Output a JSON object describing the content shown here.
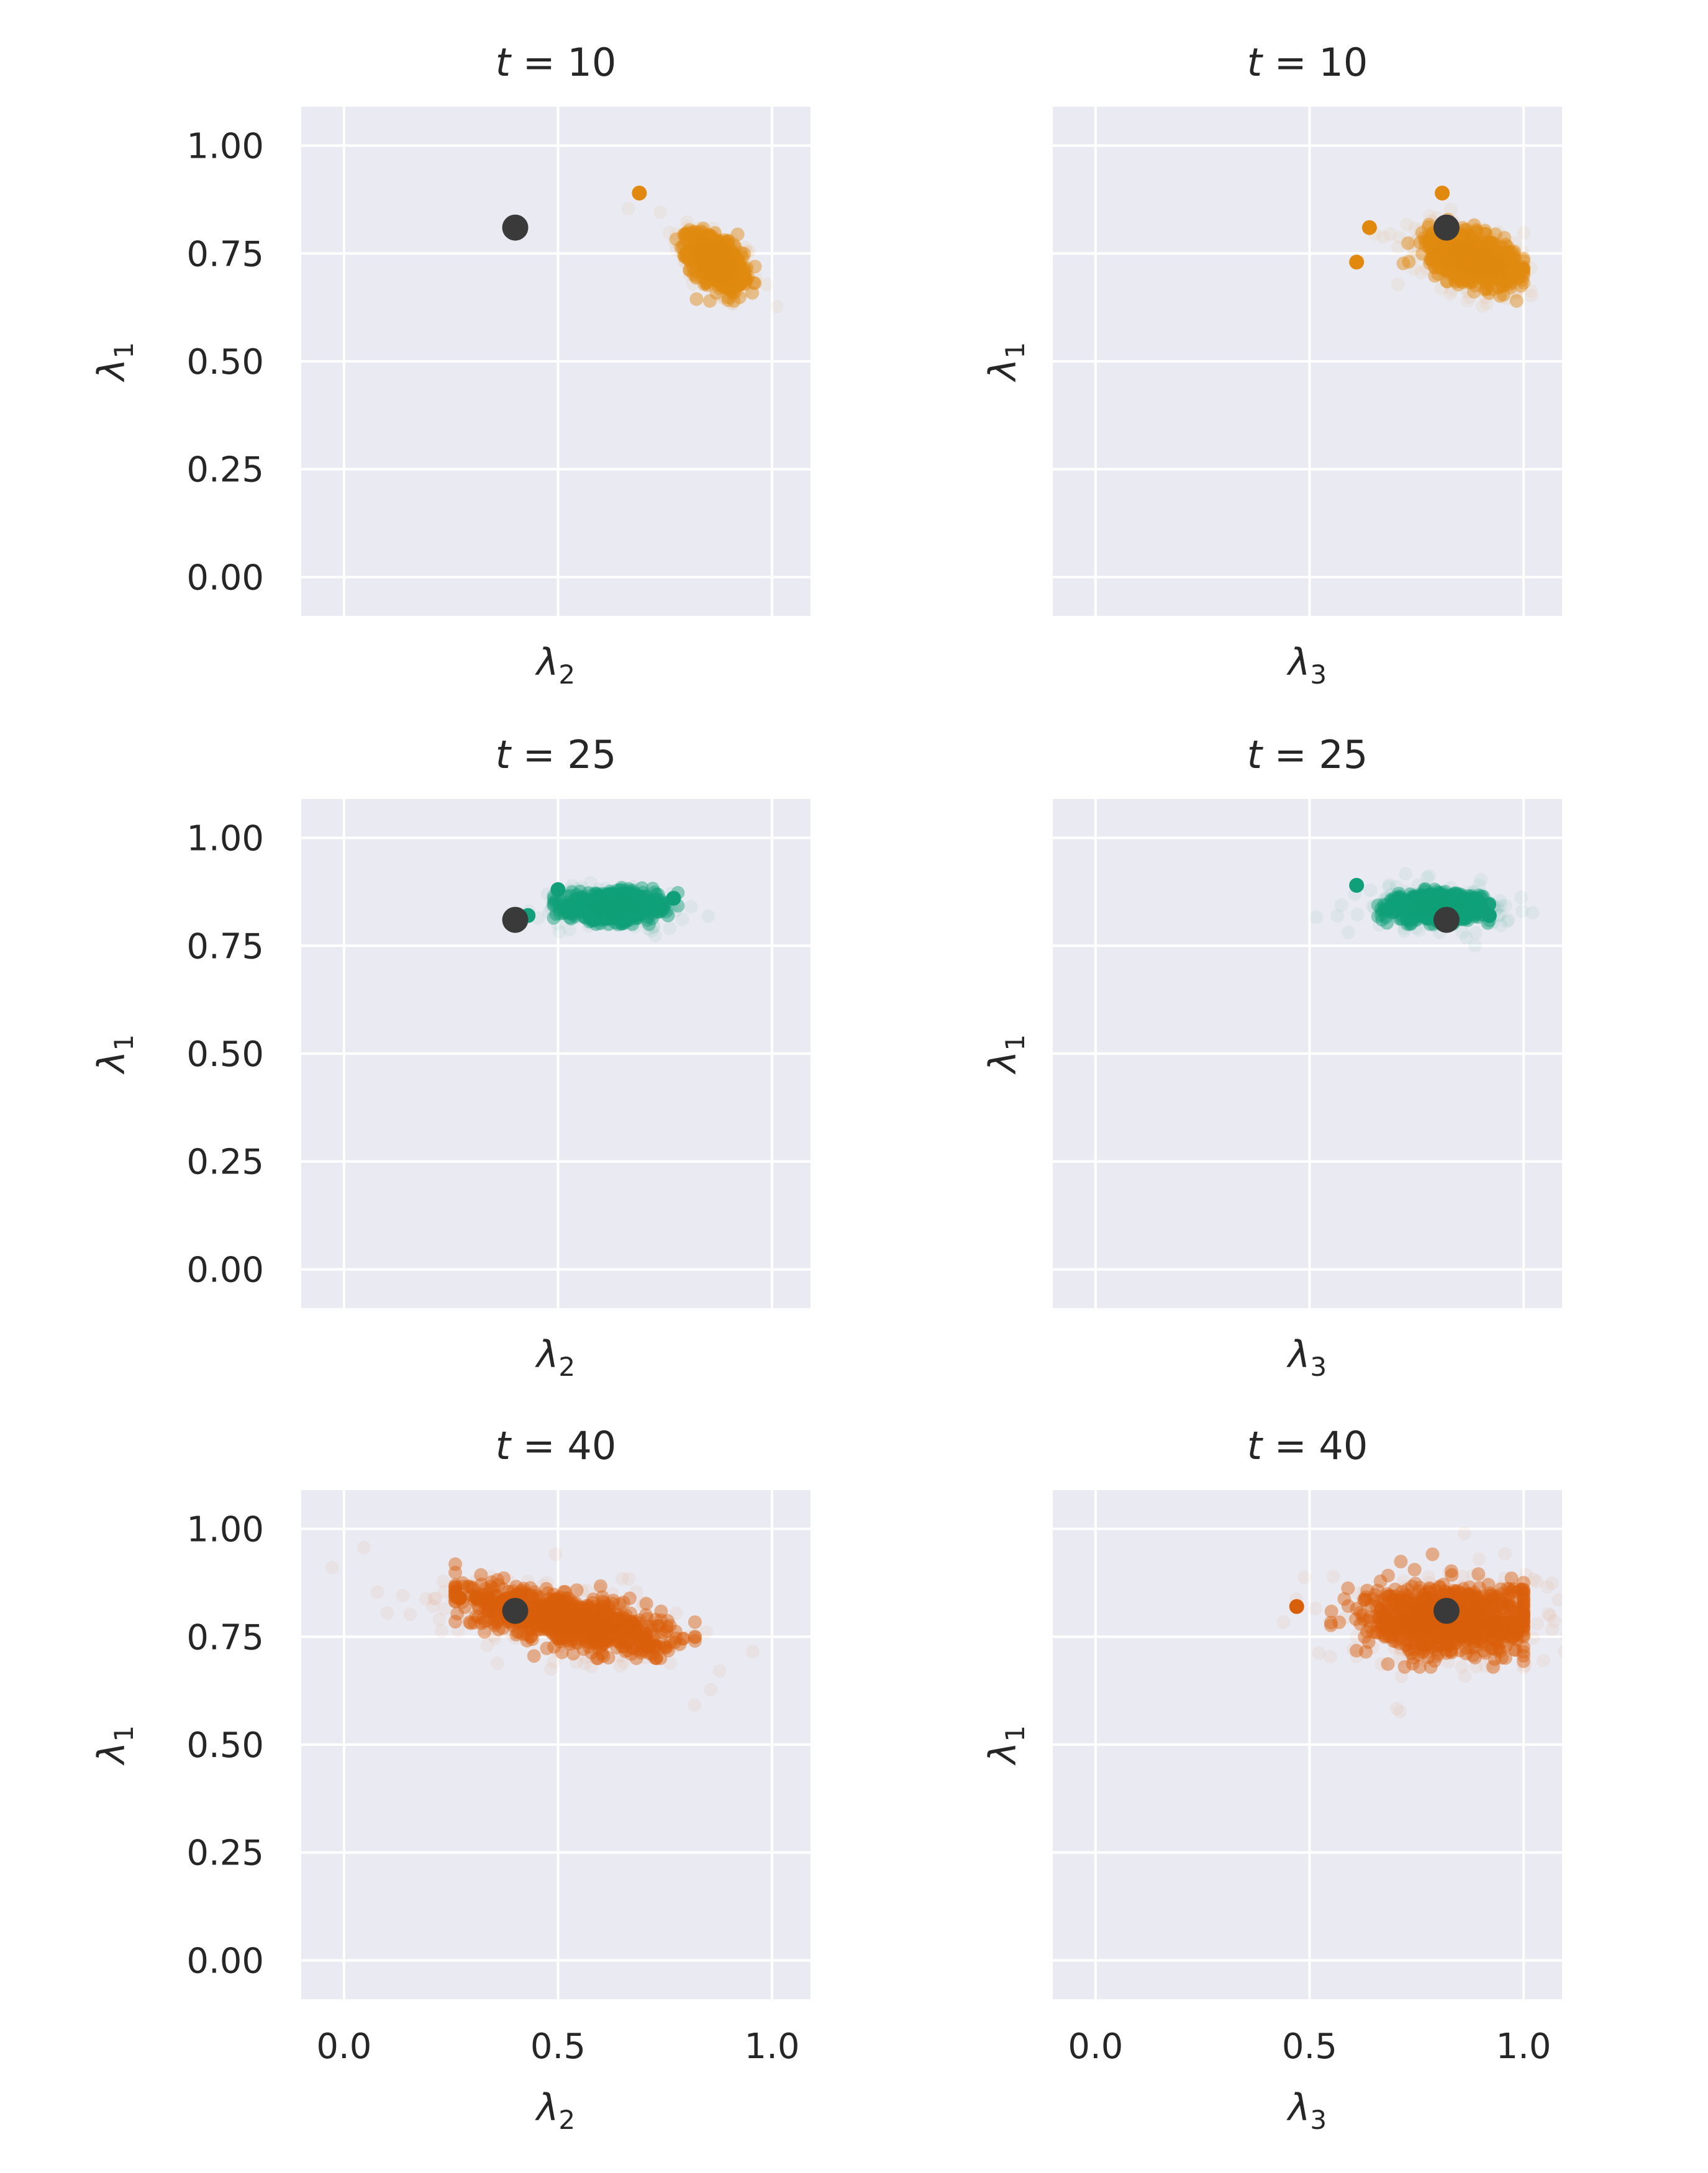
{
  "figure": {
    "colors": {
      "t10": "#e1890f",
      "t25": "#109f78",
      "t40": "#d9600a",
      "truth": "#3a3a3a",
      "panel_bg": "#eaeaf2",
      "grid": "#ffffff"
    }
  },
  "chart_data": [
    {
      "type": "scatter",
      "title": "t = 10",
      "time": "10",
      "xlabel": "λ2",
      "ylabel": "λ1",
      "xlim": [
        -0.1,
        1.09
      ],
      "ylim": [
        -0.09,
        1.09
      ],
      "xticks": [
        "0.0",
        "0.5",
        "1.0"
      ],
      "yticks": [
        "0.00",
        "0.25",
        "0.50",
        "0.75",
        "1.00"
      ],
      "show_xticklabels": false,
      "show_yticklabels": true,
      "color_key": "t10",
      "truth": {
        "x": 0.4,
        "y": 0.81
      },
      "cloud": {
        "cx": 0.87,
        "cy": 0.73,
        "sx": 0.03,
        "sy": 0.03,
        "rho": -0.5,
        "x_range": [
          0.68,
          0.99
        ],
        "y_range": [
          0.64,
          0.89
        ]
      },
      "highlights": [
        {
          "x": 0.69,
          "y": 0.89
        }
      ]
    },
    {
      "type": "scatter",
      "title": "t = 10",
      "time": "10",
      "xlabel": "λ3",
      "ylabel": "λ1",
      "xlim": [
        -0.1,
        1.09
      ],
      "ylim": [
        -0.09,
        1.09
      ],
      "xticks": [
        "0.0",
        "0.5",
        "1.0"
      ],
      "yticks": [
        "0.00",
        "0.25",
        "0.50",
        "0.75",
        "1.00"
      ],
      "show_xticklabels": false,
      "show_yticklabels": false,
      "color_key": "t10",
      "truth": {
        "x": 0.82,
        "y": 0.81
      },
      "cloud": {
        "cx": 0.88,
        "cy": 0.74,
        "sx": 0.05,
        "sy": 0.03,
        "rho": -0.45,
        "x_range": [
          0.6,
          1.0
        ],
        "y_range": [
          0.64,
          0.89
        ]
      },
      "highlights": [
        {
          "x": 0.61,
          "y": 0.73
        },
        {
          "x": 0.64,
          "y": 0.81
        },
        {
          "x": 0.81,
          "y": 0.89
        }
      ]
    },
    {
      "type": "scatter",
      "title": "t = 25",
      "time": "25",
      "xlabel": "λ2",
      "ylabel": "λ1",
      "xlim": [
        -0.1,
        1.09
      ],
      "ylim": [
        -0.09,
        1.09
      ],
      "xticks": [
        "0.0",
        "0.5",
        "1.0"
      ],
      "yticks": [
        "0.00",
        "0.25",
        "0.50",
        "0.75",
        "1.00"
      ],
      "show_xticklabels": false,
      "show_yticklabels": true,
      "color_key": "t25",
      "truth": {
        "x": 0.4,
        "y": 0.81
      },
      "cloud": {
        "cx": 0.63,
        "cy": 0.84,
        "sx": 0.05,
        "sy": 0.015,
        "rho": 0.0,
        "x_range": [
          0.49,
          0.78
        ],
        "y_range": [
          0.8,
          0.9
        ]
      },
      "highlights": [
        {
          "x": 0.43,
          "y": 0.82
        },
        {
          "x": 0.5,
          "y": 0.88
        },
        {
          "x": 0.77,
          "y": 0.86
        }
      ]
    },
    {
      "type": "scatter",
      "title": "t = 25",
      "time": "25",
      "xlabel": "λ3",
      "ylabel": "λ1",
      "xlim": [
        -0.1,
        1.09
      ],
      "ylim": [
        -0.09,
        1.09
      ],
      "xticks": [
        "0.0",
        "0.5",
        "1.0"
      ],
      "yticks": [
        "0.00",
        "0.25",
        "0.50",
        "0.75",
        "1.00"
      ],
      "show_xticklabels": false,
      "show_yticklabels": false,
      "color_key": "t25",
      "truth": {
        "x": 0.82,
        "y": 0.81
      },
      "cloud": {
        "cx": 0.8,
        "cy": 0.84,
        "sx": 0.05,
        "sy": 0.015,
        "rho": 0.0,
        "x_range": [
          0.66,
          0.92
        ],
        "y_range": [
          0.8,
          0.9
        ]
      },
      "highlights": [
        {
          "x": 0.61,
          "y": 0.89
        },
        {
          "x": 0.92,
          "y": 0.82
        }
      ]
    },
    {
      "type": "scatter",
      "title": "t = 40",
      "time": "40",
      "xlabel": "λ2",
      "ylabel": "λ1",
      "xlim": [
        -0.1,
        1.09
      ],
      "ylim": [
        -0.09,
        1.09
      ],
      "xticks": [
        "0.0",
        "0.5",
        "1.0"
      ],
      "yticks": [
        "0.00",
        "0.25",
        "0.50",
        "0.75",
        "1.00"
      ],
      "show_xticklabels": true,
      "show_yticklabels": true,
      "color_key": "t40",
      "truth": {
        "x": 0.4,
        "y": 0.81
      },
      "cloud": {
        "cx": 0.52,
        "cy": 0.79,
        "sx": 0.11,
        "sy": 0.035,
        "rho": -0.6,
        "x_range": [
          0.26,
          0.82
        ],
        "y_range": [
          0.7,
          0.96
        ]
      },
      "highlights": [
        {
          "x": 0.27,
          "y": 0.84
        },
        {
          "x": 0.31,
          "y": 0.84
        }
      ]
    },
    {
      "type": "scatter",
      "title": "t = 40",
      "time": "40",
      "xlabel": "λ3",
      "ylabel": "λ1",
      "xlim": [
        -0.1,
        1.09
      ],
      "ylim": [
        -0.09,
        1.09
      ],
      "xticks": [
        "0.0",
        "0.5",
        "1.0"
      ],
      "yticks": [
        "0.00",
        "0.25",
        "0.50",
        "0.75",
        "1.00"
      ],
      "show_xticklabels": true,
      "show_yticklabels": false,
      "color_key": "t40",
      "truth": {
        "x": 0.82,
        "y": 0.81
      },
      "cloud": {
        "cx": 0.83,
        "cy": 0.79,
        "sx": 0.1,
        "sy": 0.04,
        "rho": 0.0,
        "x_range": [
          0.55,
          1.0
        ],
        "y_range": [
          0.68,
          0.96
        ]
      },
      "highlights": [
        {
          "x": 0.47,
          "y": 0.82
        }
      ]
    }
  ]
}
